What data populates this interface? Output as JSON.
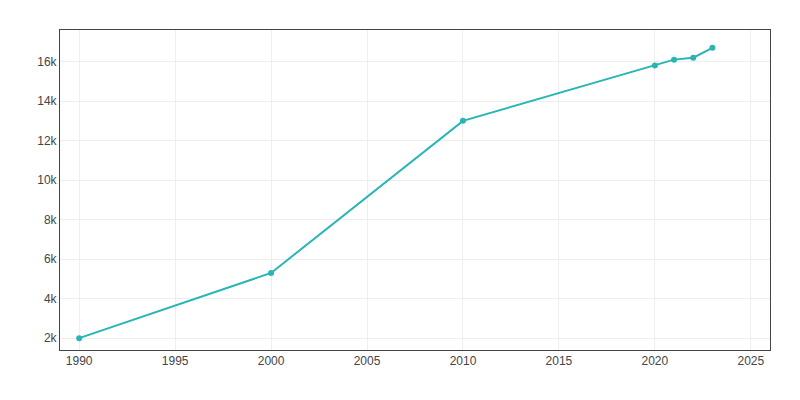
{
  "chart_data": {
    "type": "line",
    "x": [
      1990,
      2000,
      2010,
      2020,
      2021,
      2022,
      2023
    ],
    "values": [
      2000,
      5300,
      13000,
      15800,
      16100,
      16200,
      16700
    ],
    "color": "#2ab5b5",
    "marker": "circle",
    "xlim": [
      1989,
      2026
    ],
    "ylim": [
      1400,
      17600
    ],
    "xticks": [
      1990,
      1995,
      2000,
      2005,
      2010,
      2015,
      2020,
      2025
    ],
    "yticks": [
      {
        "value": 2000,
        "label": "2k"
      },
      {
        "value": 4000,
        "label": "4k"
      },
      {
        "value": 6000,
        "label": "6k"
      },
      {
        "value": 8000,
        "label": "8k"
      },
      {
        "value": 10000,
        "label": "10k"
      },
      {
        "value": 12000,
        "label": "12k"
      },
      {
        "value": 14000,
        "label": "14k"
      },
      {
        "value": 16000,
        "label": "16k"
      }
    ],
    "grid": true
  }
}
